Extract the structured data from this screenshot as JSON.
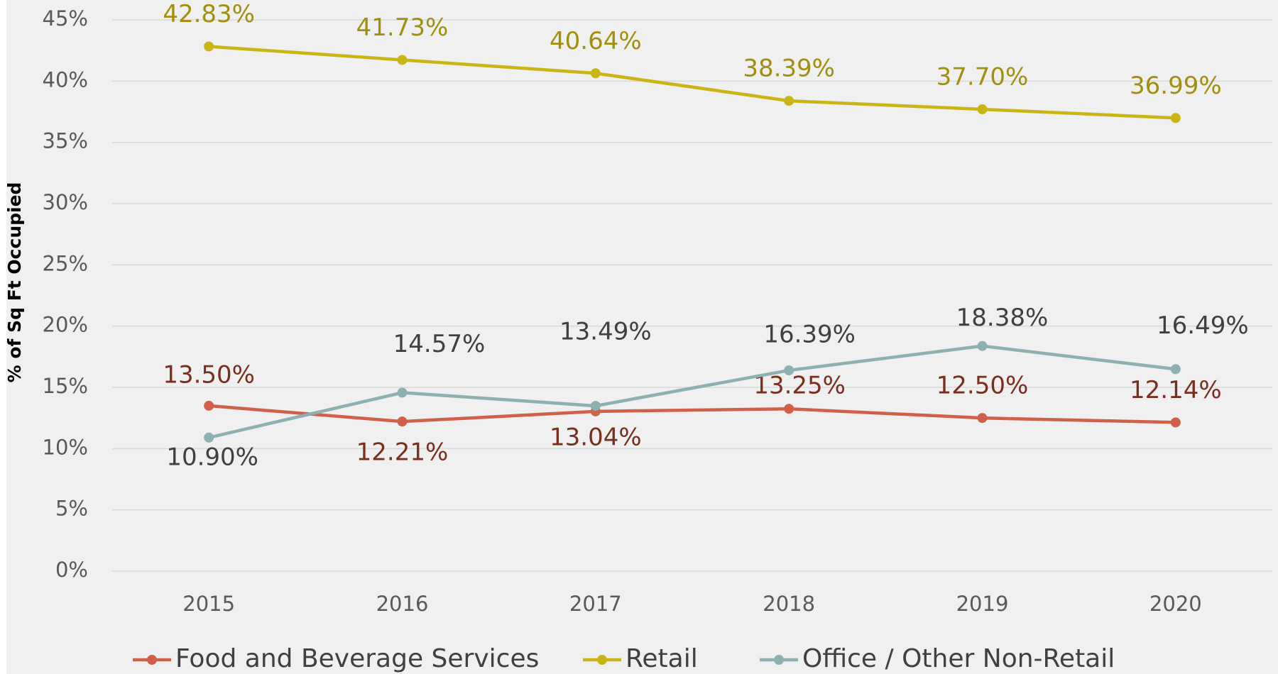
{
  "chart_data": {
    "type": "line",
    "y_label": "% of Sq Ft Occupied",
    "categories": [
      "2015",
      "2016",
      "2017",
      "2018",
      "2019",
      "2020"
    ],
    "series": [
      {
        "name": "Food and Beverage Services",
        "color": "#d0604a",
        "label_color": "#7a2e1e",
        "values": [
          13.5,
          12.21,
          13.04,
          13.25,
          12.5,
          12.14
        ],
        "value_labels": [
          "13.50%",
          "12.21%",
          "13.04%",
          "13.25%",
          "12.50%",
          "12.14%"
        ]
      },
      {
        "name": "Retail",
        "color": "#c9b516",
        "label_color": "#a38f0e",
        "values": [
          42.83,
          41.73,
          40.64,
          38.39,
          37.7,
          36.99
        ],
        "value_labels": [
          "42.83%",
          "41.73%",
          "40.64%",
          "38.39%",
          "37.70%",
          "36.99%"
        ]
      },
      {
        "name": "Office / Other Non-Retail",
        "color": "#8fb0b0",
        "label_color": "#404040",
        "values": [
          10.9,
          14.57,
          13.49,
          16.39,
          18.38,
          16.49
        ],
        "value_labels": [
          "10.90%",
          "14.57%",
          "13.49%",
          "16.39%",
          "18.38%",
          "16.49%"
        ]
      }
    ],
    "ylim": [
      0,
      45
    ],
    "yticks": [
      {
        "value": 0,
        "label": "0%"
      },
      {
        "value": 5,
        "label": "5%"
      },
      {
        "value": 10,
        "label": "10%"
      },
      {
        "value": 15,
        "label": "15%"
      },
      {
        "value": 20,
        "label": "20%"
      },
      {
        "value": 25,
        "label": "25%"
      },
      {
        "value": 30,
        "label": "30%"
      },
      {
        "value": 35,
        "label": "35%"
      },
      {
        "value": 40,
        "label": "40%"
      },
      {
        "value": 45,
        "label": "45%"
      }
    ],
    "grid": true,
    "legend": "bottom"
  }
}
